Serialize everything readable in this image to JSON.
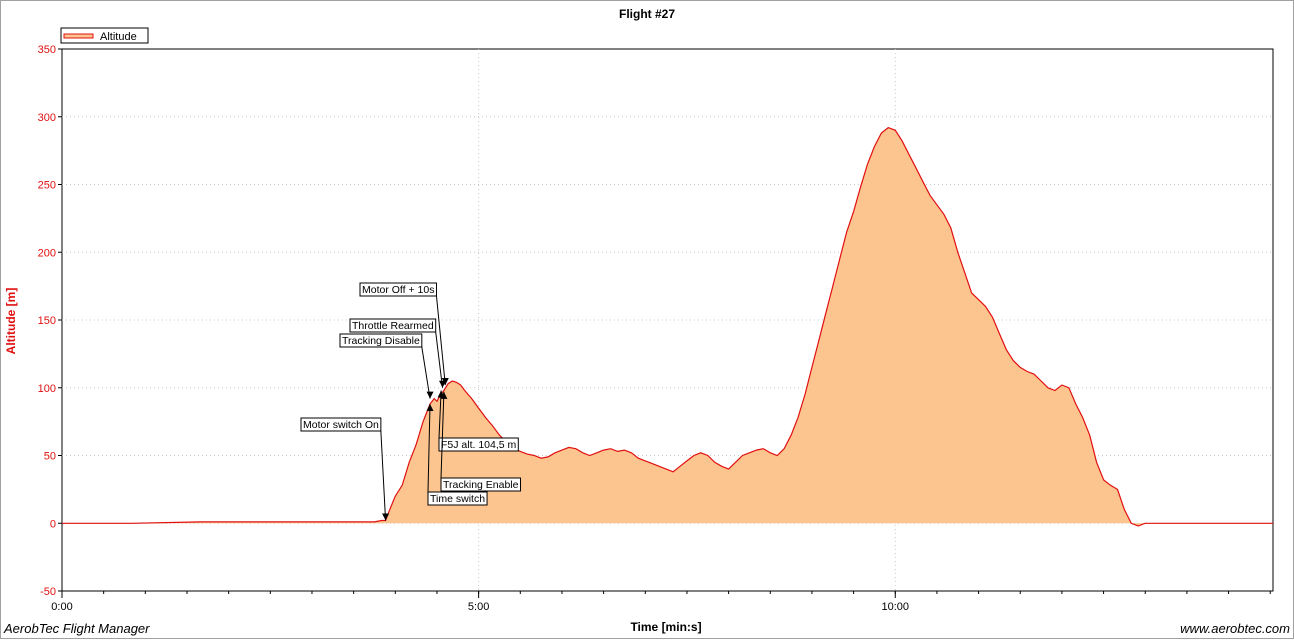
{
  "chart_data": {
    "type": "area",
    "title": "Flight #27",
    "xlabel": "Time [min:s]",
    "ylabel": "Altitude [m]",
    "legend": {
      "placement": "top-left",
      "entries": [
        "Altitude"
      ]
    },
    "grid": true,
    "xlim": [
      0,
      872
    ],
    "ylim": [
      -50,
      350
    ],
    "x_ticks": [
      {
        "value": 0,
        "label": "0:00"
      },
      {
        "value": 300,
        "label": "5:00"
      },
      {
        "value": 600,
        "label": "10:00"
      }
    ],
    "y_ticks": [
      {
        "value": -50,
        "label": "-50"
      },
      {
        "value": 0,
        "label": "0"
      },
      {
        "value": 50,
        "label": "50"
      },
      {
        "value": 100,
        "label": "100"
      },
      {
        "value": 150,
        "label": "150"
      },
      {
        "value": 200,
        "label": "200"
      },
      {
        "value": 250,
        "label": "250"
      },
      {
        "value": 300,
        "label": "300"
      },
      {
        "value": 350,
        "label": "350"
      }
    ],
    "series": [
      {
        "name": "Altitude",
        "color": "#e01010",
        "fill": "#fcc48f",
        "x": [
          0,
          50,
          100,
          150,
          200,
          225,
          230,
          233,
          236,
          240,
          245,
          250,
          255,
          260,
          265,
          268,
          270,
          272,
          275,
          278,
          281,
          284,
          287,
          290,
          295,
          300,
          305,
          310,
          315,
          320,
          325,
          330,
          335,
          340,
          345,
          350,
          355,
          360,
          365,
          370,
          375,
          380,
          385,
          390,
          395,
          400,
          405,
          410,
          415,
          420,
          425,
          430,
          435,
          440,
          445,
          450,
          455,
          460,
          465,
          470,
          475,
          480,
          485,
          490,
          495,
          500,
          505,
          510,
          515,
          520,
          525,
          530,
          535,
          540,
          545,
          550,
          555,
          560,
          565,
          570,
          575,
          580,
          585,
          590,
          595,
          600,
          605,
          610,
          615,
          620,
          625,
          630,
          635,
          640,
          645,
          650,
          655,
          660,
          665,
          670,
          675,
          680,
          685,
          690,
          695,
          700,
          705,
          710,
          715,
          720,
          725,
          730,
          735,
          740,
          745,
          750,
          755,
          760,
          765,
          770,
          775,
          780,
          785,
          790,
          795,
          800,
          805,
          810,
          815,
          820,
          825,
          830,
          835,
          840,
          845,
          850,
          855,
          860,
          865,
          872
        ],
        "values": [
          0,
          0,
          1,
          1,
          1,
          1,
          2,
          2,
          10,
          20,
          28,
          45,
          58,
          75,
          88,
          92,
          90,
          94,
          98,
          103,
          105,
          104,
          102,
          98,
          92,
          85,
          78,
          72,
          65,
          60,
          55,
          53,
          51,
          50,
          48,
          49,
          52,
          54,
          56,
          55,
          52,
          50,
          52,
          54,
          55,
          53,
          54,
          52,
          48,
          46,
          44,
          42,
          40,
          38,
          42,
          46,
          50,
          52,
          50,
          45,
          42,
          40,
          45,
          50,
          52,
          54,
          55,
          52,
          50,
          55,
          65,
          78,
          95,
          115,
          135,
          155,
          175,
          195,
          215,
          230,
          248,
          265,
          278,
          288,
          292,
          290,
          282,
          272,
          262,
          252,
          242,
          235,
          228,
          218,
          200,
          185,
          170,
          165,
          160,
          152,
          140,
          128,
          120,
          115,
          112,
          110,
          105,
          100,
          98,
          102,
          100,
          88,
          78,
          65,
          45,
          32,
          28,
          25,
          10,
          0,
          -2,
          0,
          0,
          0,
          0,
          0,
          0,
          0,
          0,
          0,
          0,
          0,
          0,
          0,
          0,
          0,
          0,
          0,
          0,
          0
        ]
      }
    ],
    "annotations": [
      {
        "label": "Motor switch On",
        "x": 233,
        "y": 2
      },
      {
        "label": "Tracking Disable",
        "x": 265,
        "y": 92
      },
      {
        "label": "Time switch",
        "x": 265,
        "y": 88
      },
      {
        "label": "Throttle Rearmed",
        "x": 274,
        "y": 100
      },
      {
        "label": "F5J alt. 104,5 m",
        "x": 273,
        "y": 98
      },
      {
        "label": "Tracking Enable",
        "x": 275,
        "y": 97
      },
      {
        "label": "Motor Off + 10s",
        "x": 276,
        "y": 102
      }
    ]
  },
  "footer": {
    "left": "AerobTec Flight Manager",
    "right": "www.aerobtec.com"
  }
}
